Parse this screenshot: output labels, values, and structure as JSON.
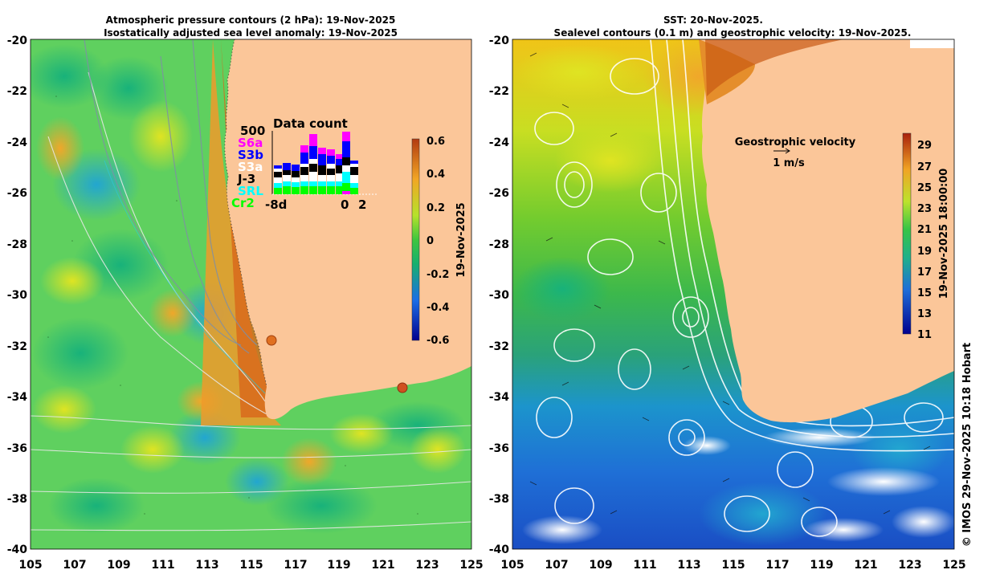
{
  "left_panel": {
    "title_line1": "Atmospheric pressure contours (2 hPa): 19-Nov-2025",
    "title_line2": "Isostatically adjusted sea level anomaly: 19-Nov-2025",
    "y_ticks": [
      "-20",
      "-22",
      "-24",
      "-26",
      "-28",
      "-30",
      "-32",
      "-34",
      "-36",
      "-38",
      "-40"
    ],
    "x_ticks": [
      "105",
      "107",
      "109",
      "111",
      "113",
      "115",
      "117",
      "119",
      "121",
      "123",
      "125"
    ],
    "colorbar": {
      "label": "19-Nov-2025",
      "ticks": [
        "0.6",
        "0.4",
        "0.2",
        "0",
        "-0.2",
        "-0.4",
        "-0.6"
      ]
    },
    "data_count": {
      "title": "Data count",
      "max_label": "500",
      "missions": [
        {
          "name": "S6a",
          "color": "#ff00ff"
        },
        {
          "name": "S3b",
          "color": "#0000ff"
        },
        {
          "name": "S3a",
          "color": "#ffffff"
        },
        {
          "name": "J-3",
          "color": "#000000"
        },
        {
          "name": "SRL",
          "color": "#00ffff"
        },
        {
          "name": "Cr2",
          "color": "#00ff00"
        }
      ],
      "x_labels": [
        "-8d",
        "0",
        "2"
      ]
    }
  },
  "right_panel": {
    "title_line1": "SST: 20-Nov-2025.",
    "title_line2": "Sealevel contours (0.1 m) and geostrophic velocity: 19-Nov-2025.",
    "y_ticks": [
      "-20",
      "-22",
      "-24",
      "-26",
      "-28",
      "-30",
      "-32",
      "-34",
      "-36",
      "-38",
      "-40"
    ],
    "x_ticks": [
      "105",
      "107",
      "109",
      "111",
      "113",
      "115",
      "117",
      "119",
      "121",
      "123",
      "125"
    ],
    "velocity_label": "Geostrophic velocity",
    "velocity_scale": "1 m/s",
    "colorbar": {
      "label": "19-Nov-2025 18:00:00",
      "ticks": [
        "29",
        "27",
        "25",
        "23",
        "21",
        "19",
        "17",
        "15",
        "13",
        "11"
      ]
    }
  },
  "credit": "© IMOS 29-Nov-2025 10:18 Hobart",
  "colors": {
    "land": "#fbc699",
    "ocean_left": "#5fd05f",
    "ocean_right_warm": "#f2d21a",
    "ocean_right_cool": "#1e90d0"
  }
}
